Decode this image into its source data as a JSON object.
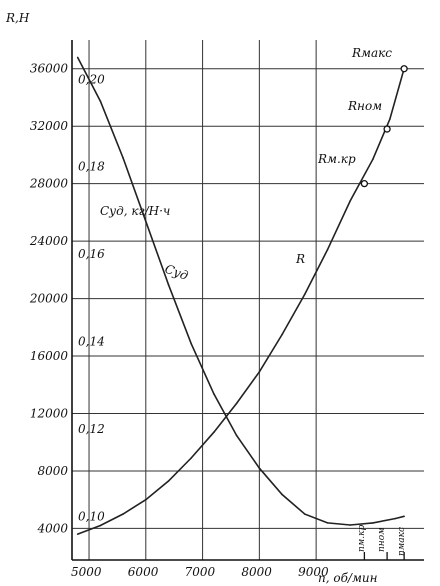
{
  "chart_data": {
    "type": "line",
    "title": "",
    "y_left_label": "R,Н",
    "y_inner_label": "Cуд, кг/Н·ч",
    "x_label": "n, об/мин",
    "x_ticks": [
      "5000",
      "6000",
      "7000",
      "8000",
      "9000"
    ],
    "y_left_ticks": [
      "4000",
      "8000",
      "12000",
      "16000",
      "20000",
      "24000",
      "28000",
      "32000",
      "36000"
    ],
    "y_inner_ticks": [
      "0,10",
      "0,12",
      "0,14",
      "0,16",
      "0,18",
      "0,20"
    ],
    "xlim": [
      4700,
      10900
    ],
    "ylim_R": [
      1800,
      38000
    ],
    "ylim_C": [
      0.09,
      0.209
    ],
    "grid": true,
    "series": [
      {
        "name": "R",
        "axis": "R",
        "x": [
          4800,
          5200,
          5600,
          6000,
          6400,
          6800,
          7200,
          7600,
          8000,
          8400,
          8800,
          9200,
          9600,
          10000,
          10300,
          10550
        ],
        "y": [
          3600,
          4200,
          5000,
          6000,
          7300,
          8900,
          10700,
          12700,
          14900,
          17500,
          20300,
          23400,
          26800,
          29700,
          32500,
          36000
        ]
      },
      {
        "name": "Cуд",
        "axis": "C",
        "x": [
          4800,
          5200,
          5600,
          6000,
          6400,
          6800,
          7200,
          7600,
          8000,
          8400,
          8800,
          9200,
          9600,
          10000,
          10400,
          10550
        ],
        "y": [
          0.205,
          0.195,
          0.182,
          0.1675,
          0.153,
          0.1395,
          0.128,
          0.1185,
          0.111,
          0.105,
          0.1005,
          0.0985,
          0.098,
          0.0985,
          0.0995,
          0.1
        ]
      }
    ],
    "annotations": {
      "curve_R": "R",
      "curve_C": "Cуд",
      "R_max": "Rмакс",
      "R_nom": "Rном",
      "R_mkr": "Rм.кр",
      "n_mkr": "nм.кр",
      "n_nom": "nном",
      "n_max": "nмакс"
    },
    "marked_points": [
      {
        "key": "R_mkr",
        "x": 9850,
        "y": 28000
      },
      {
        "key": "R_nom",
        "x": 10250,
        "y": 31800
      },
      {
        "key": "R_max",
        "x": 10550,
        "y": 36000
      }
    ],
    "rpm_markers": {
      "n_mkr": 9850,
      "n_nom": 10250,
      "n_max": 10550
    }
  }
}
